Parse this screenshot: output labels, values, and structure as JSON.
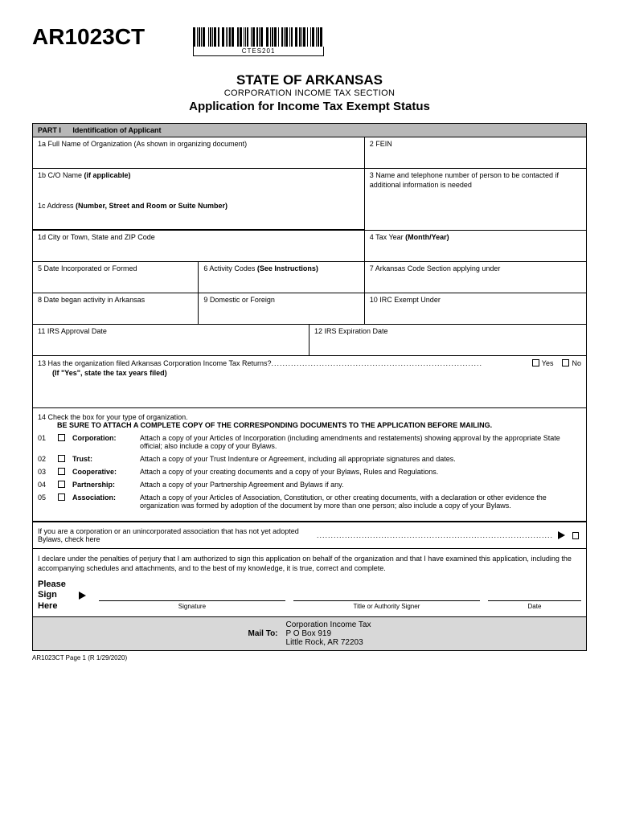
{
  "form_code": "AR1023CT",
  "barcode_text": "CTES201",
  "title": {
    "state": "STATE OF ARKANSAS",
    "section": "CORPORATION INCOME TAX SECTION",
    "app": "Application for Income Tax Exempt Status"
  },
  "part1": {
    "header_part": "PART I",
    "header_title": "Identification of Applicant",
    "f1a": "1a  Full Name of Organization (As shown in organizing document)",
    "f2": "2  FEIN",
    "f1b_prefix": "1b  C/O Name ",
    "f1b_bold": "(if applicable)",
    "f3": "3  Name and telephone number of person to be contacted if additional information is needed",
    "f1c_prefix": "1c  Address ",
    "f1c_bold": "(Number, Street and Room or Suite Number)",
    "f1d": "1d  City or Town, State and ZIP Code",
    "f4_prefix": "4  Tax Year ",
    "f4_bold": "(Month/Year)",
    "f5": "5   Date Incorporated or Formed",
    "f6_prefix": "6  Activity Codes ",
    "f6_bold": "(See Instructions)",
    "f7": "7   Arkansas Code Section applying under",
    "f8": "8   Date began activity in Arkansas",
    "f9": "9  Domestic or Foreign",
    "f10": "10  IRC Exempt Under",
    "f11": "11  IRS Approval Date",
    "f12": "12  IRS Expiration Date",
    "f13_q": "13  Has the organization filed Arkansas Corporation Income Tax Returns? ",
    "f13_note": "(If \"Yes\", state the tax years filed)",
    "yes": "Yes",
    "no": "No"
  },
  "part14": {
    "intro1": "14    Check the box for your type of organization.",
    "intro2": "BE SURE TO ATTACH A COMPLETE COPY OF THE CORRESPONDING DOCUMENTS TO THE APPLICATION BEFORE MAILING.",
    "items": [
      {
        "num": "01",
        "type": "Corporation:",
        "desc": "Attach a copy of your Articles of Incorporation (including amendments and restatements) showing approval by the appropriate State official; also include a copy of your Bylaws."
      },
      {
        "num": "02",
        "type": "Trust:",
        "desc": "Attach a copy of your Trust Indenture or Agreement, including all appropriate signatures and dates."
      },
      {
        "num": "03",
        "type": "Cooperative:",
        "desc": "Attach a copy of your creating documents and a copy of your Bylaws, Rules and Regulations."
      },
      {
        "num": "04",
        "type": "Partnership:",
        "desc": "Attach a copy of your Partnership Agreement and Bylaws if any."
      },
      {
        "num": "05",
        "type": "Association:",
        "desc": "Attach a copy of your Articles of Association, Constitution, or other creating documents, with a declaration or other evidence the organization was formed by adoption of the document by more than one person; also include a copy of your Bylaws."
      }
    ],
    "bylaws": "If you are a corporation or an unincorporated association that has not yet adopted Bylaws, check here "
  },
  "declaration": "I declare under the penalties of perjury that I am authorized to sign this application on behalf of the organization and that I have examined this application, including the accompanying schedules and attachments, and to the best of my knowledge, it is true, correct and complete.",
  "sign": {
    "please": "Please",
    "sign": "Sign",
    "here": "Here",
    "signature": "Signature",
    "title": "Title or Authority Signer",
    "date": "Date"
  },
  "mailto": {
    "label": "Mail To:",
    "line1": "Corporation Income Tax",
    "line2": "P O Box 919",
    "line3": "Little Rock, AR 72203"
  },
  "footer": "AR1023CT Page 1 (R 1/29/2020)"
}
